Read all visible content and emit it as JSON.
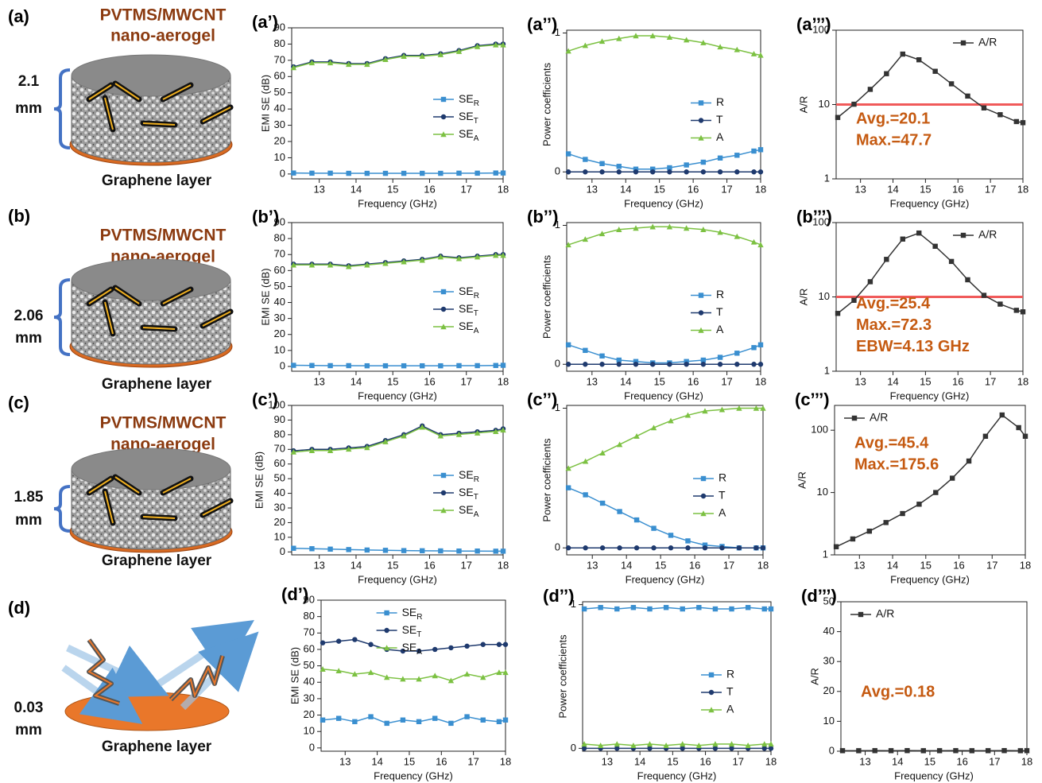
{
  "schematics": [
    {
      "label": "(a)",
      "material": [
        "PVTMS/MWCNT",
        "nano-aerogel"
      ],
      "thickness": [
        "2.1",
        "mm"
      ],
      "layer": "Graphene layer"
    },
    {
      "label": "(b)",
      "material": [
        "PVTMS/MWCNT",
        "nano-aerogel"
      ],
      "thickness": [
        "2.06",
        "mm"
      ],
      "layer": "Graphene layer"
    },
    {
      "label": "(c)",
      "material": [
        "PVTMS/MWCNT",
        "nano-aerogel"
      ],
      "thickness": [
        "1.85",
        "mm"
      ],
      "layer": "Graphene layer"
    },
    {
      "label": "(d)",
      "thickness": [
        "0.03",
        "mm"
      ],
      "layer": "Graphene layer"
    }
  ],
  "chart_data": [
    {
      "type": "line",
      "panel": "(a’)",
      "xlabel": "Frequency (GHz)",
      "ylabel": "EMI SE (dB)",
      "x": [
        12.3,
        12.8,
        13.3,
        13.8,
        14.3,
        14.8,
        15.3,
        15.8,
        16.3,
        16.8,
        17.3,
        17.8,
        18
      ],
      "xlim": [
        12.25,
        18
      ],
      "xticks": [
        13,
        14,
        15,
        16,
        17,
        18
      ],
      "ylim": [
        -3,
        90
      ],
      "yticks": [
        0,
        10,
        20,
        30,
        40,
        50,
        60,
        70,
        80,
        90
      ],
      "legend": "lower right",
      "series": [
        {
          "name": "SER",
          "color": "#3a8fd0",
          "marker": "square",
          "values": [
            0.6,
            0.5,
            0.5,
            0.4,
            0.4,
            0.4,
            0.4,
            0.4,
            0.4,
            0.5,
            0.5,
            0.6,
            0.6
          ]
        },
        {
          "name": "SET",
          "color": "#1f3a6e",
          "marker": "circle",
          "values": [
            66,
            69,
            69,
            68,
            68,
            71,
            73,
            73,
            74,
            76,
            79,
            80,
            80
          ]
        },
        {
          "name": "SEA",
          "color": "#7cc142",
          "marker": "triangle",
          "values": [
            65.5,
            68.5,
            68.5,
            67.5,
            67.5,
            70.5,
            72.5,
            72.5,
            73.5,
            75.5,
            78.5,
            79.5,
            79.5
          ]
        }
      ]
    },
    {
      "type": "line",
      "panel": "(a’’)",
      "xlabel": "Frequency (GHz)",
      "ylabel": "Power coefficients",
      "x": [
        12.3,
        12.8,
        13.3,
        13.8,
        14.3,
        14.8,
        15.3,
        15.8,
        16.3,
        16.8,
        17.3,
        17.8,
        18
      ],
      "xlim": [
        12.25,
        18
      ],
      "xticks": [
        13,
        14,
        15,
        16,
        17,
        18
      ],
      "ylim": [
        -0.05,
        1.02
      ],
      "yticks": [
        0,
        1
      ],
      "legend": "center right",
      "series": [
        {
          "name": "R",
          "color": "#3a8fd0",
          "marker": "square",
          "values": [
            0.13,
            0.09,
            0.06,
            0.04,
            0.02,
            0.02,
            0.03,
            0.05,
            0.07,
            0.1,
            0.12,
            0.15,
            0.16
          ]
        },
        {
          "name": "T",
          "color": "#1f3a6e",
          "marker": "circle",
          "values": [
            0,
            0,
            0,
            0,
            0,
            0,
            0,
            0,
            0,
            0,
            0,
            0,
            0
          ]
        },
        {
          "name": "A",
          "color": "#7cc142",
          "marker": "triangle",
          "values": [
            0.87,
            0.91,
            0.94,
            0.96,
            0.98,
            0.98,
            0.97,
            0.95,
            0.93,
            0.9,
            0.88,
            0.85,
            0.84
          ]
        }
      ]
    },
    {
      "type": "line",
      "panel": "(a’’’)",
      "xlabel": "Frequency (GHz)",
      "ylabel": "A/R",
      "x": [
        12.3,
        12.8,
        13.3,
        13.8,
        14.3,
        14.8,
        15.3,
        15.8,
        16.3,
        16.8,
        17.3,
        17.8,
        18
      ],
      "xlim": [
        12.25,
        18
      ],
      "xticks": [
        13,
        14,
        15,
        16,
        17,
        18
      ],
      "ylog": true,
      "ylim": [
        1,
        100
      ],
      "yticks": [
        1,
        10,
        100
      ],
      "legend": "upper right",
      "threshold": 10,
      "threshold_color": "#f05a5a",
      "annotations": [
        "Avg.=20.1",
        "Max.=47.7"
      ],
      "series": [
        {
          "name": "A/R",
          "color": "#333333",
          "marker": "square",
          "values": [
            6.7,
            10.1,
            16,
            26,
            47.7,
            40,
            28,
            19,
            13,
            9,
            7.3,
            5.9,
            5.7
          ]
        }
      ]
    },
    {
      "type": "line",
      "panel": "(b’)",
      "xlabel": "Frequency (GHz)",
      "ylabel": "EMI SE (dB)",
      "x": [
        12.3,
        12.8,
        13.3,
        13.8,
        14.3,
        14.8,
        15.3,
        15.8,
        16.3,
        16.8,
        17.3,
        17.8,
        18
      ],
      "xlim": [
        12.25,
        18
      ],
      "xticks": [
        13,
        14,
        15,
        16,
        17,
        18
      ],
      "ylim": [
        -3,
        90
      ],
      "yticks": [
        0,
        10,
        20,
        30,
        40,
        50,
        60,
        70,
        80,
        90
      ],
      "legend": "lower right",
      "series": [
        {
          "name": "SER",
          "color": "#3a8fd0",
          "marker": "square",
          "values": [
            0.7,
            0.6,
            0.5,
            0.5,
            0.4,
            0.4,
            0.4,
            0.4,
            0.4,
            0.5,
            0.5,
            0.6,
            0.7
          ]
        },
        {
          "name": "SET",
          "color": "#1f3a6e",
          "marker": "circle",
          "values": [
            64,
            64,
            64,
            63,
            64,
            65,
            66,
            67,
            69,
            68,
            69,
            70,
            70
          ]
        },
        {
          "name": "SEA",
          "color": "#7cc142",
          "marker": "triangle",
          "values": [
            63.5,
            63.5,
            63.5,
            62.5,
            63.5,
            64.5,
            65.5,
            66.5,
            68.5,
            67.5,
            68.5,
            69.5,
            69.5
          ]
        }
      ]
    },
    {
      "type": "line",
      "panel": "(b’’)",
      "xlabel": "Frequency (GHz)",
      "ylabel": "Power coefficients",
      "x": [
        12.3,
        12.8,
        13.3,
        13.8,
        14.3,
        14.8,
        15.3,
        15.8,
        16.3,
        16.8,
        17.3,
        17.8,
        18
      ],
      "xlim": [
        12.25,
        18
      ],
      "xticks": [
        13,
        14,
        15,
        16,
        17,
        18
      ],
      "ylim": [
        -0.05,
        1.02
      ],
      "yticks": [
        0,
        1
      ],
      "legend": "center right",
      "series": [
        {
          "name": "R",
          "color": "#3a8fd0",
          "marker": "square",
          "values": [
            0.14,
            0.1,
            0.06,
            0.03,
            0.02,
            0.01,
            0.01,
            0.02,
            0.03,
            0.05,
            0.08,
            0.12,
            0.14
          ]
        },
        {
          "name": "T",
          "color": "#1f3a6e",
          "marker": "circle",
          "values": [
            0,
            0,
            0,
            0,
            0,
            0,
            0,
            0,
            0,
            0,
            0,
            0,
            0
          ]
        },
        {
          "name": "A",
          "color": "#7cc142",
          "marker": "triangle",
          "values": [
            0.86,
            0.9,
            0.94,
            0.97,
            0.98,
            0.99,
            0.99,
            0.98,
            0.97,
            0.95,
            0.92,
            0.88,
            0.86
          ]
        }
      ]
    },
    {
      "type": "line",
      "panel": "(b’’’)",
      "xlabel": "Frequency (GHz)",
      "ylabel": "A/R",
      "x": [
        12.3,
        12.8,
        13.3,
        13.8,
        14.3,
        14.8,
        15.3,
        15.8,
        16.3,
        16.8,
        17.3,
        17.8,
        18
      ],
      "xlim": [
        12.25,
        18
      ],
      "xticks": [
        13,
        14,
        15,
        16,
        17,
        18
      ],
      "ylog": true,
      "ylim": [
        1,
        100
      ],
      "yticks": [
        1,
        10,
        100
      ],
      "legend": "upper right",
      "threshold": 10,
      "threshold_color": "#f05a5a",
      "annotations": [
        "Avg.=25.4",
        "Max.=72.3",
        "EBW=4.13 GHz"
      ],
      "series": [
        {
          "name": "A/R",
          "color": "#333333",
          "marker": "square",
          "values": [
            6,
            9,
            16,
            32,
            60,
            72.3,
            48,
            30,
            17,
            10.5,
            8,
            6.6,
            6.3
          ]
        }
      ]
    },
    {
      "type": "line",
      "panel": "(c’)",
      "xlabel": "Frequency (GHz)",
      "ylabel": "EMI SE (dB)",
      "x": [
        12.3,
        12.8,
        13.3,
        13.8,
        14.3,
        14.8,
        15.3,
        15.8,
        16.3,
        16.8,
        17.3,
        17.8,
        18
      ],
      "xlim": [
        12.25,
        18
      ],
      "xticks": [
        13,
        14,
        15,
        16,
        17,
        18
      ],
      "ylim": [
        -2,
        100
      ],
      "yticks": [
        0,
        10,
        20,
        30,
        40,
        50,
        60,
        70,
        80,
        90,
        100
      ],
      "legend": "lower right",
      "series": [
        {
          "name": "SER",
          "color": "#3a8fd0",
          "marker": "square",
          "values": [
            2.5,
            2.2,
            1.9,
            1.6,
            1.3,
            1.1,
            0.9,
            0.8,
            0.7,
            0.6,
            0.6,
            0.5,
            0.5
          ]
        },
        {
          "name": "SET",
          "color": "#1f3a6e",
          "marker": "circle",
          "values": [
            69,
            70,
            70,
            71,
            72,
            76,
            80,
            86,
            80,
            81,
            82,
            83,
            84
          ]
        },
        {
          "name": "SEA",
          "color": "#7cc142",
          "marker": "triangle",
          "values": [
            68.2,
            69.2,
            69.2,
            70.2,
            71.2,
            75.2,
            79.2,
            85.2,
            79.2,
            80.2,
            81.2,
            82.2,
            83.2
          ]
        }
      ]
    },
    {
      "type": "line",
      "panel": "(c’’)",
      "xlabel": "Frequency (GHz)",
      "ylabel": "Power coefficients",
      "x": [
        12.3,
        12.8,
        13.3,
        13.8,
        14.3,
        14.8,
        15.3,
        15.8,
        16.3,
        16.8,
        17.3,
        17.8,
        18
      ],
      "xlim": [
        12.25,
        18
      ],
      "xticks": [
        13,
        14,
        15,
        16,
        17,
        18
      ],
      "ylim": [
        -0.05,
        1.02
      ],
      "yticks": [
        0,
        1
      ],
      "legend": "center right",
      "series": [
        {
          "name": "R",
          "color": "#3a8fd0",
          "marker": "square",
          "values": [
            0.43,
            0.38,
            0.32,
            0.26,
            0.2,
            0.14,
            0.09,
            0.05,
            0.02,
            0.01,
            0,
            0,
            0
          ]
        },
        {
          "name": "T",
          "color": "#1f3a6e",
          "marker": "circle",
          "values": [
            0,
            0,
            0,
            0,
            0,
            0,
            0,
            0,
            0,
            0,
            0,
            0,
            0
          ]
        },
        {
          "name": "A",
          "color": "#7cc142",
          "marker": "triangle",
          "values": [
            0.57,
            0.62,
            0.68,
            0.74,
            0.8,
            0.86,
            0.91,
            0.95,
            0.98,
            0.99,
            1,
            1,
            1
          ]
        }
      ]
    },
    {
      "type": "line",
      "panel": "(c’’’)",
      "xlabel": "Frequency (GHz)",
      "ylabel": "A/R",
      "x": [
        12.3,
        12.8,
        13.3,
        13.8,
        14.3,
        14.8,
        15.3,
        15.8,
        16.3,
        16.8,
        17.3,
        17.8,
        18
      ],
      "xlim": [
        12.25,
        18
      ],
      "xticks": [
        13,
        14,
        15,
        16,
        17,
        18
      ],
      "ylog": true,
      "ylim": [
        1,
        250
      ],
      "yticks": [
        1,
        10,
        100
      ],
      "legend": "upper left",
      "annotations": [
        "Avg.=45.4",
        "Max.=175.6"
      ],
      "series": [
        {
          "name": "A/R",
          "color": "#333333",
          "marker": "square",
          "values": [
            1.35,
            1.8,
            2.4,
            3.3,
            4.6,
            6.5,
            10,
            17,
            32,
            80,
            175.6,
            110,
            80
          ]
        }
      ]
    },
    {
      "type": "line",
      "panel": "(d’)",
      "xlabel": "Frequency (GHz)",
      "ylabel": "EMI SE (dB)",
      "x": [
        12.3,
        12.8,
        13.3,
        13.8,
        14.3,
        14.8,
        15.3,
        15.8,
        16.3,
        16.8,
        17.3,
        17.8,
        18
      ],
      "xlim": [
        12.25,
        18
      ],
      "xticks": [
        13,
        14,
        15,
        16,
        17,
        18
      ],
      "ylim": [
        -2,
        90
      ],
      "yticks": [
        0,
        10,
        20,
        30,
        40,
        50,
        60,
        70,
        80,
        90
      ],
      "legend": "upper center",
      "series": [
        {
          "name": "SER",
          "color": "#3a8fd0",
          "marker": "square",
          "values": [
            17,
            18,
            16,
            19,
            15,
            17,
            16,
            18,
            15,
            19,
            17,
            16,
            17
          ]
        },
        {
          "name": "SET",
          "color": "#1f3a6e",
          "marker": "circle",
          "values": [
            64,
            65,
            66,
            63,
            60,
            59,
            59,
            60,
            61,
            62,
            63,
            63,
            63
          ]
        },
        {
          "name": "SEA",
          "color": "#7cc142",
          "marker": "triangle",
          "values": [
            48,
            47,
            45,
            46,
            43,
            42,
            42,
            44,
            41,
            45,
            43,
            46,
            46
          ]
        }
      ]
    },
    {
      "type": "line",
      "panel": "(d’’)",
      "xlabel": "Frequency (GHz)",
      "ylabel": "Power coefficients",
      "x": [
        12.3,
        12.8,
        13.3,
        13.8,
        14.3,
        14.8,
        15.3,
        15.8,
        16.3,
        16.8,
        17.3,
        17.8,
        18
      ],
      "xlim": [
        12.25,
        18
      ],
      "xticks": [
        13,
        14,
        15,
        16,
        17,
        18
      ],
      "ylim": [
        -0.02,
        1.02
      ],
      "yticks": [
        0,
        1
      ],
      "legend": "center right",
      "series": [
        {
          "name": "R",
          "color": "#3a8fd0",
          "marker": "square",
          "values": [
            0.97,
            0.98,
            0.97,
            0.98,
            0.97,
            0.98,
            0.97,
            0.98,
            0.97,
            0.97,
            0.98,
            0.97,
            0.97
          ]
        },
        {
          "name": "T",
          "color": "#1f3a6e",
          "marker": "circle",
          "values": [
            0,
            0,
            0,
            0,
            0,
            0,
            0,
            0,
            0,
            0,
            0,
            0,
            0
          ]
        },
        {
          "name": "A",
          "color": "#7cc142",
          "marker": "triangle",
          "values": [
            0.03,
            0.02,
            0.03,
            0.02,
            0.03,
            0.02,
            0.03,
            0.02,
            0.03,
            0.03,
            0.02,
            0.03,
            0.03
          ]
        }
      ]
    },
    {
      "type": "line",
      "panel": "(d’’’)",
      "xlabel": "Frequency (GHz)",
      "ylabel": "A/R",
      "x": [
        12.3,
        12.8,
        13.3,
        13.8,
        14.3,
        14.8,
        15.3,
        15.8,
        16.3,
        16.8,
        17.3,
        17.8,
        18
      ],
      "xlim": [
        12.25,
        18
      ],
      "xticks": [
        13,
        14,
        15,
        16,
        17,
        18
      ],
      "ylim": [
        0,
        50
      ],
      "yticks": [
        0,
        10,
        20,
        30,
        40,
        50
      ],
      "legend": "upper left",
      "annotations": [
        "Avg.=0.18"
      ],
      "series": [
        {
          "name": "A/R",
          "color": "#333333",
          "marker": "square",
          "values": [
            0.18,
            0.17,
            0.19,
            0.18,
            0.2,
            0.17,
            0.18,
            0.19,
            0.17,
            0.18,
            0.2,
            0.17,
            0.18
          ]
        }
      ]
    }
  ]
}
